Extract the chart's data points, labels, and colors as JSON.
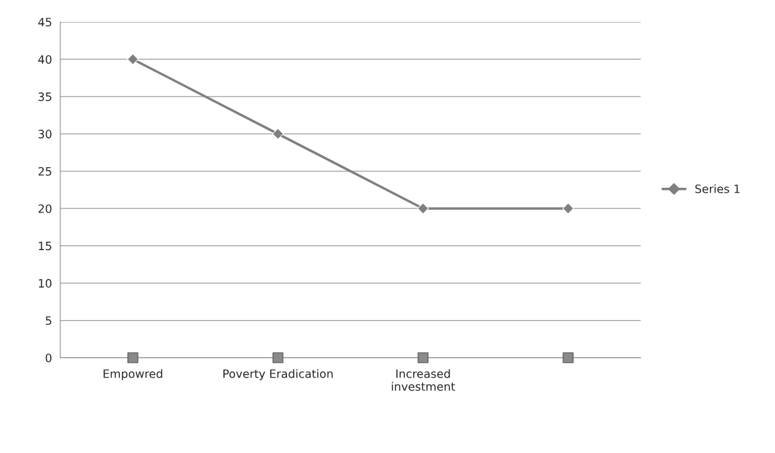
{
  "chart_data": {
    "type": "line",
    "categories": [
      "Empowred",
      "Poverty Eradication",
      "Increased\ninvestment",
      null
    ],
    "series": [
      {
        "name": "Series 1",
        "color": "#7f7f7f",
        "values": [
          40,
          30,
          20,
          20
        ],
        "marker": "diamond"
      },
      {
        "type": "scatter",
        "color": "#8a8a8a",
        "values": [
          0,
          0,
          0,
          0
        ],
        "marker": "square"
      }
    ],
    "ylim": [
      0,
      45
    ],
    "yticks": [
      0,
      5,
      10,
      15,
      20,
      25,
      30,
      35,
      40,
      45
    ],
    "grid": "y",
    "legend": "right",
    "line_style": "solid"
  }
}
